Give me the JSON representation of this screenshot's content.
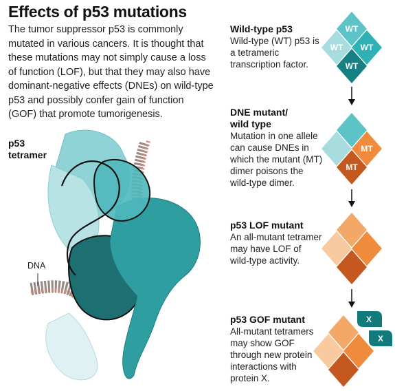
{
  "title": "Effects of p53 mutations",
  "intro": "The tumor suppressor p53 is commonly mutated in various cancers. It is thought that these mutations may not simply cause a loss of function (LOF), but that they may also have dominant-negative effects (DNEs) on wild-type p53 and possibly confer gain of function (GOF) that promote tumorigenesis.",
  "tetramer_label_1": "p53",
  "tetramer_label_2": "tetramer",
  "dna_label": "DNA",
  "steps": [
    {
      "title_1": "Wild-type p53",
      "title_2": "",
      "body": "Wild-type (WT) p53 is a tetrameric transcription factor."
    },
    {
      "title_1": "DNE mutant/",
      "title_2": "wild type",
      "body": "Mutation in one allele can cause DNEs in which the mutant (MT) dimer poisons the wild-type dimer."
    },
    {
      "title_1": "p53 LOF mutant",
      "title_2": "",
      "body": "An all-mutant tetramer may have LOF of wild-type activity."
    },
    {
      "title_1": "p53 GOF mutant",
      "title_2": "",
      "body": "All-mutant tetramers may show GOF through new protein interactions with protein X."
    }
  ],
  "tags": {
    "wt": "WT",
    "mt": "MT",
    "x": "X"
  },
  "colors": {
    "teal_light": "#a8dcdf",
    "teal_mid": "#5cc3c6",
    "teal_dark": "#157f82",
    "orange_light": "#f9c9a0",
    "orange_mid": "#f08a3c",
    "orange_dark": "#c4581f",
    "x_badge": "#117a7a"
  }
}
